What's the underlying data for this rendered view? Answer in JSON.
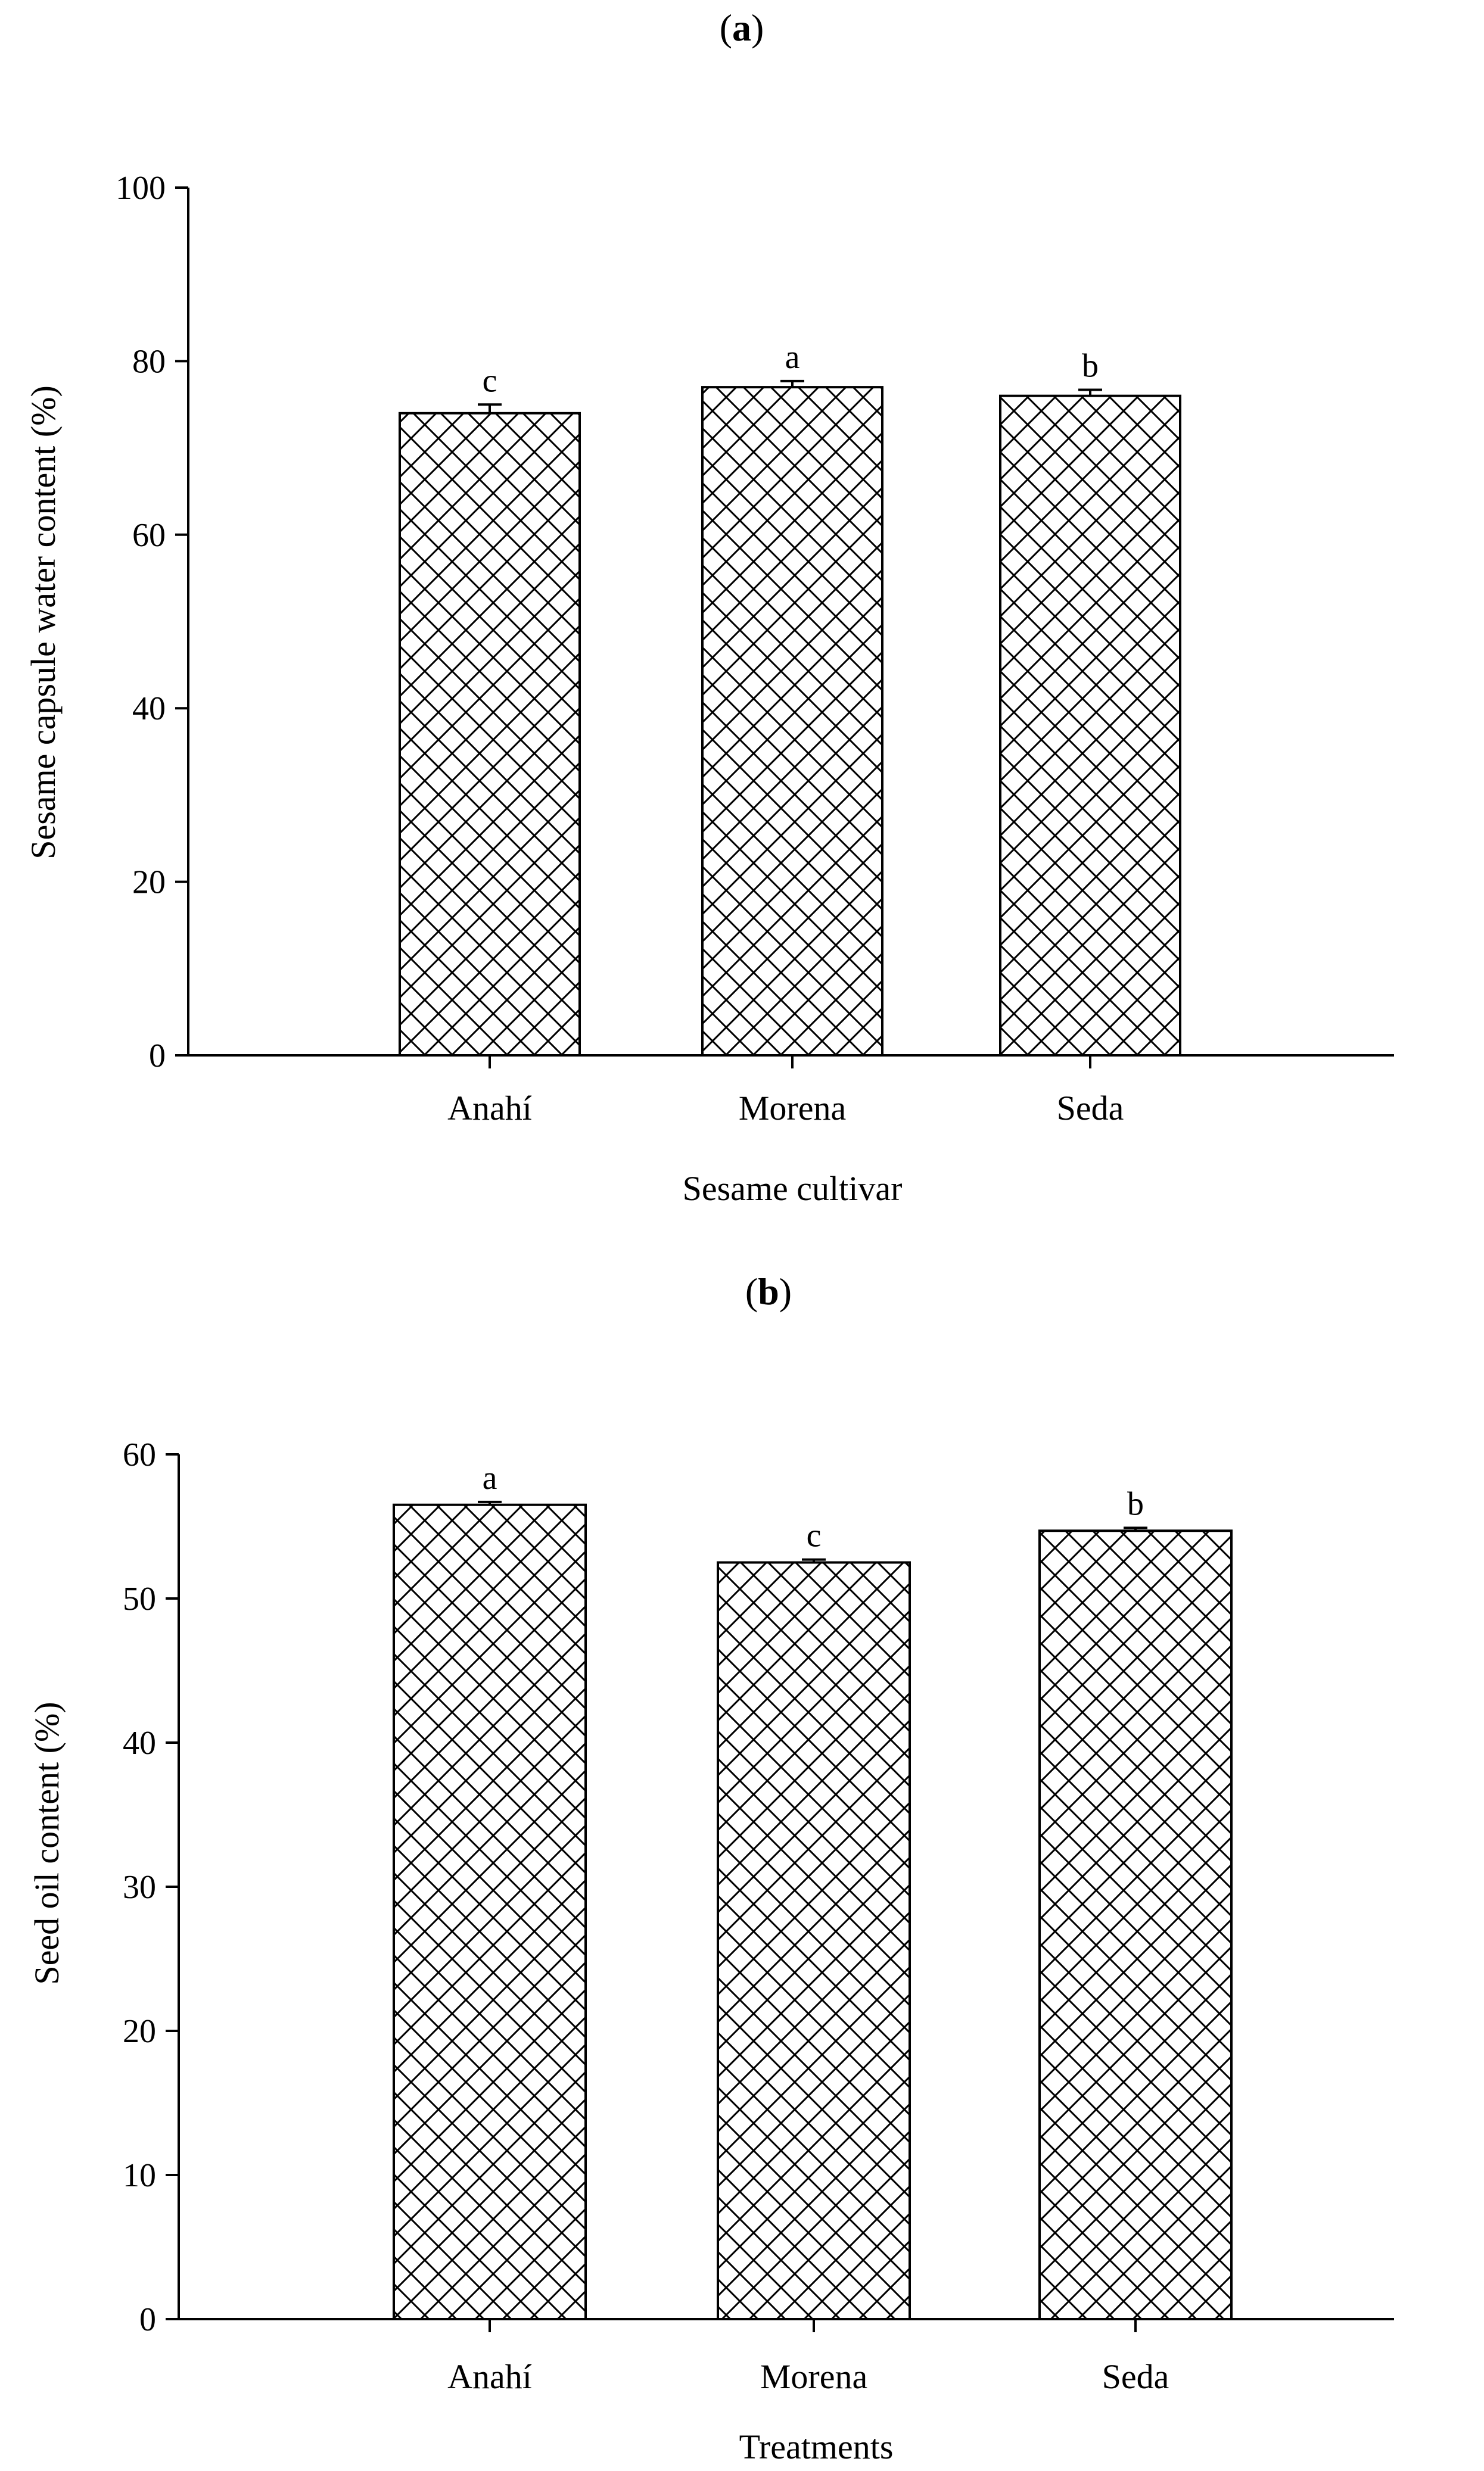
{
  "chart_data": [
    {
      "type": "bar",
      "panel": "a",
      "title": "",
      "categories": [
        "Anahí",
        "Morena",
        "Seda"
      ],
      "values": [
        74.0,
        77.0,
        76.0
      ],
      "errors": [
        1.0,
        0.7,
        0.7
      ],
      "significance_letters": [
        "c",
        "a",
        "b"
      ],
      "xlabel": "Sesame cultivar",
      "ylabel": "Sesame capsule water content (%)",
      "ylim": [
        0,
        100
      ],
      "yticks": [
        0,
        20,
        40,
        60,
        80,
        100
      ],
      "fill_pattern": "crosshatch",
      "grid": false,
      "legend": "none"
    },
    {
      "type": "bar",
      "panel": "b",
      "title": "",
      "categories": [
        "Anahí",
        "Morena",
        "Seda"
      ],
      "values": [
        56.5,
        52.5,
        54.7
      ],
      "errors": [
        0.2,
        0.2,
        0.2
      ],
      "significance_letters": [
        "a",
        "c",
        "b"
      ],
      "xlabel": "Treatments",
      "ylabel": "Seed oil content (%)",
      "ylim": [
        0,
        60
      ],
      "yticks": [
        0,
        10,
        20,
        30,
        40,
        50,
        60
      ],
      "fill_pattern": "crosshatch",
      "grid": false,
      "legend": "none"
    }
  ],
  "colors": {
    "ink": "#000000",
    "background": "#ffffff"
  }
}
